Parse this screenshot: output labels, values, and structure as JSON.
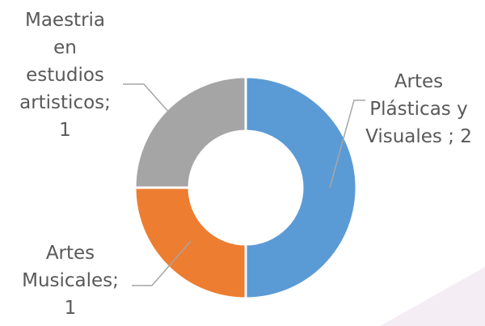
{
  "chart_data": {
    "type": "pie",
    "variant": "doughnut",
    "title": "",
    "categories": [
      "Artes Plásticas y Visuales",
      "Artes Musicales",
      "Maestria en estudios artisticos"
    ],
    "values": [
      2,
      1,
      1
    ],
    "colors": [
      "#5b9bd5",
      "#ed7d31",
      "#a5a5a5"
    ],
    "data_labels": [
      [
        "Artes",
        "Plásticas y",
        "Visuales ; 2"
      ],
      [
        "Artes",
        "Musicales;",
        "1"
      ],
      [
        "Maestria",
        "en",
        "estudios",
        "artisticos;",
        "1"
      ]
    ],
    "legend": "none",
    "label_color": "#595959",
    "leader_line_color": "#a6a6a6",
    "background_accent_color": "#f4eef4"
  }
}
